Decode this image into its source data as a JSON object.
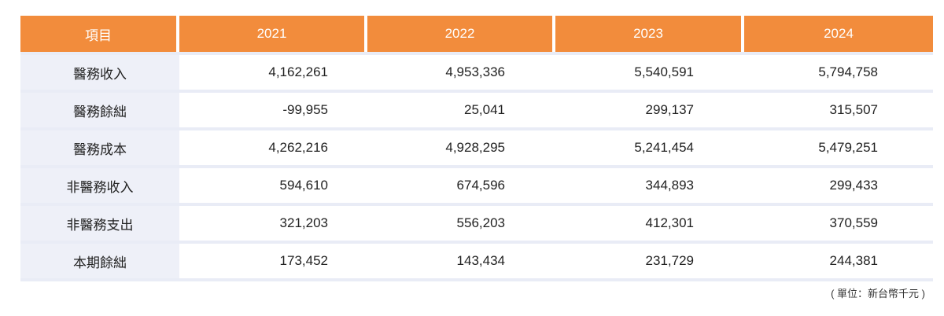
{
  "table": {
    "headers": [
      "項目",
      "2021",
      "2022",
      "2023",
      "2024"
    ],
    "rows": [
      {
        "label": "醫務收入",
        "values": [
          "4,162,261",
          "4,953,336",
          "5,540,591",
          "5,794,758"
        ]
      },
      {
        "label": "醫務餘絀",
        "values": [
          "-99,955",
          "25,041",
          "299,137",
          "315,507"
        ]
      },
      {
        "label": "醫務成本",
        "values": [
          "4,262,216",
          "4,928,295",
          "5,241,454",
          "5,479,251"
        ]
      },
      {
        "label": "非醫務收入",
        "values": [
          "594,610",
          "674,596",
          "344,893",
          "299,433"
        ]
      },
      {
        "label": "非醫務支出",
        "values": [
          "321,203",
          "556,203",
          "412,301",
          "370,559"
        ]
      },
      {
        "label": "本期餘絀",
        "values": [
          "173,452",
          "143,434",
          "231,729",
          "244,381"
        ]
      }
    ]
  },
  "unit_note": "( 單位：新台幣千元 )",
  "colors": {
    "header_bg": "#f28c3c",
    "header_text": "#ffffff",
    "label_bg": "#eef0f8",
    "row_divider": "#e9ecf6"
  }
}
